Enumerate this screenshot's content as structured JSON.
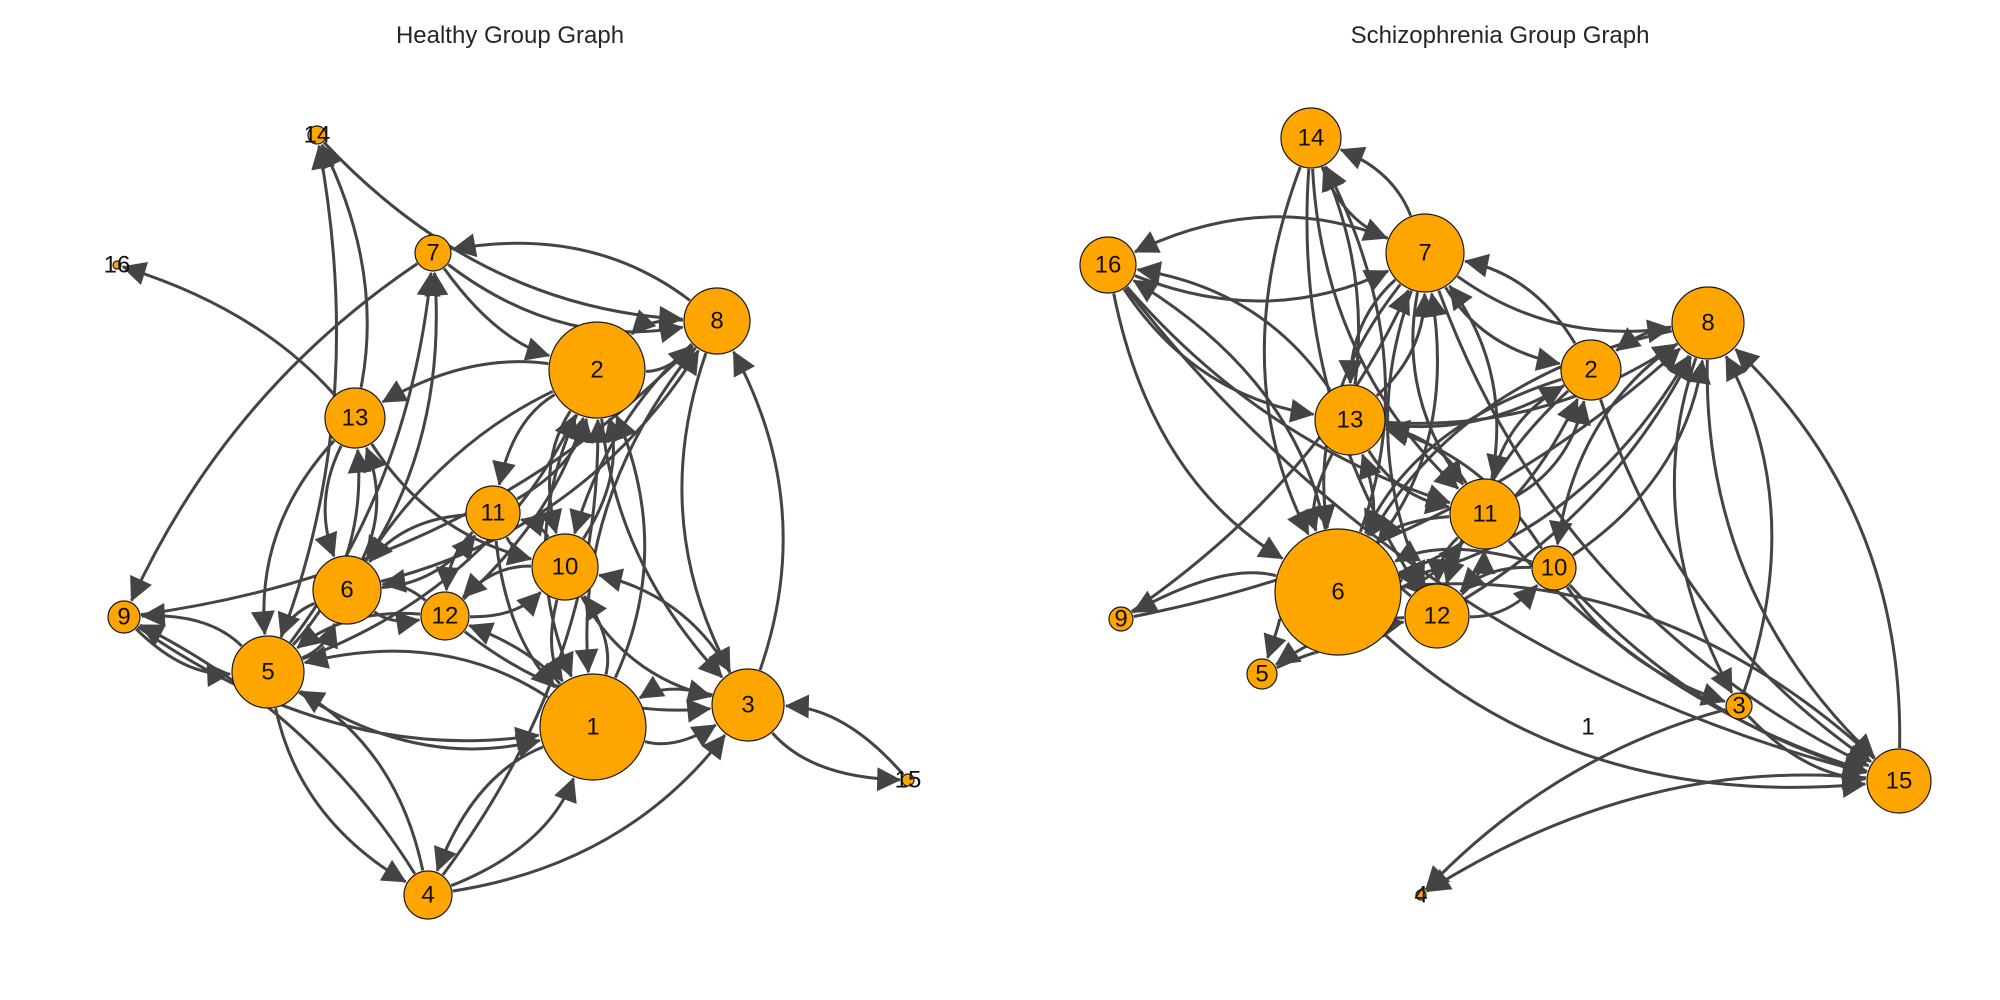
{
  "graphs": {
    "healthy": {
      "title": "Healthy Group Graph",
      "edge_color": "#444444",
      "node_color": "#FFA500",
      "nodes": [
        {
          "id": "1",
          "label": "1"
        },
        {
          "id": "2",
          "label": "2"
        },
        {
          "id": "3",
          "label": "3"
        },
        {
          "id": "4",
          "label": "4"
        },
        {
          "id": "5",
          "label": "5"
        },
        {
          "id": "6",
          "label": "6"
        },
        {
          "id": "7",
          "label": "7"
        },
        {
          "id": "8",
          "label": "8"
        },
        {
          "id": "9",
          "label": "9"
        },
        {
          "id": "10",
          "label": "10"
        },
        {
          "id": "11",
          "label": "11"
        },
        {
          "id": "12",
          "label": "12"
        },
        {
          "id": "13",
          "label": "13"
        },
        {
          "id": "14",
          "label": "14"
        },
        {
          "id": "15",
          "label": "15"
        },
        {
          "id": "16",
          "label": "16"
        }
      ],
      "edges": [
        [
          "13",
          "16"
        ],
        [
          "13",
          "14"
        ],
        [
          "14",
          "8"
        ],
        [
          "5",
          "14"
        ],
        [
          "3",
          "15"
        ],
        [
          "15",
          "3"
        ],
        [
          "5",
          "7"
        ],
        [
          "7",
          "2"
        ],
        [
          "8",
          "7"
        ],
        [
          "7",
          "9"
        ],
        [
          "9",
          "5"
        ],
        [
          "5",
          "9"
        ],
        [
          "4",
          "9"
        ],
        [
          "4",
          "5"
        ],
        [
          "5",
          "4"
        ],
        [
          "4",
          "1"
        ],
        [
          "1",
          "4"
        ],
        [
          "4",
          "3"
        ],
        [
          "1",
          "3"
        ],
        [
          "3",
          "1"
        ],
        [
          "3",
          "8"
        ],
        [
          "8",
          "3"
        ],
        [
          "2",
          "3"
        ],
        [
          "2",
          "8"
        ],
        [
          "8",
          "2"
        ],
        [
          "1",
          "2"
        ],
        [
          "2",
          "1"
        ],
        [
          "5",
          "13"
        ],
        [
          "13",
          "5"
        ],
        [
          "6",
          "5"
        ],
        [
          "5",
          "6"
        ],
        [
          "13",
          "6"
        ],
        [
          "6",
          "13"
        ],
        [
          "11",
          "6"
        ],
        [
          "6",
          "11"
        ],
        [
          "12",
          "6"
        ],
        [
          "6",
          "12"
        ],
        [
          "10",
          "11"
        ],
        [
          "11",
          "10"
        ],
        [
          "10",
          "12"
        ],
        [
          "12",
          "10"
        ],
        [
          "11",
          "12"
        ],
        [
          "1",
          "12"
        ],
        [
          "10",
          "1"
        ],
        [
          "1",
          "10"
        ],
        [
          "2",
          "10"
        ],
        [
          "10",
          "2"
        ],
        [
          "11",
          "2"
        ],
        [
          "2",
          "11"
        ],
        [
          "2",
          "13"
        ],
        [
          "13",
          "10"
        ],
        [
          "10",
          "3"
        ],
        [
          "3",
          "10"
        ],
        [
          "12",
          "3"
        ],
        [
          "8",
          "10"
        ],
        [
          "5",
          "1"
        ],
        [
          "9",
          "1"
        ],
        [
          "1",
          "5"
        ],
        [
          "6",
          "7"
        ],
        [
          "12",
          "5"
        ],
        [
          "2",
          "6"
        ],
        [
          "11",
          "1"
        ],
        [
          "8",
          "1"
        ],
        [
          "7",
          "8"
        ],
        [
          "9",
          "8"
        ],
        [
          "5",
          "2"
        ],
        [
          "12",
          "2"
        ],
        [
          "4",
          "2"
        ],
        [
          "6",
          "8"
        ]
      ]
    },
    "schizophrenia": {
      "title": "Schizophrenia Group Graph",
      "edge_color": "#444444",
      "node_color": "#FFA500",
      "nodes": [
        {
          "id": "1",
          "label": "1"
        },
        {
          "id": "2",
          "label": "2"
        },
        {
          "id": "3",
          "label": "3"
        },
        {
          "id": "4",
          "label": "4"
        },
        {
          "id": "5",
          "label": "5"
        },
        {
          "id": "6",
          "label": "6"
        },
        {
          "id": "7",
          "label": "7"
        },
        {
          "id": "8",
          "label": "8"
        },
        {
          "id": "9",
          "label": "9"
        },
        {
          "id": "10",
          "label": "10"
        },
        {
          "id": "11",
          "label": "11"
        },
        {
          "id": "12",
          "label": "12"
        },
        {
          "id": "13",
          "label": "13"
        },
        {
          "id": "14",
          "label": "14"
        },
        {
          "id": "15",
          "label": "15"
        },
        {
          "id": "16",
          "label": "16"
        }
      ],
      "edges": [
        [
          "3",
          "4"
        ],
        [
          "15",
          "4"
        ],
        [
          "16",
          "7"
        ],
        [
          "7",
          "16"
        ],
        [
          "14",
          "7"
        ],
        [
          "7",
          "14"
        ],
        [
          "13",
          "14"
        ],
        [
          "14",
          "6"
        ],
        [
          "6",
          "14"
        ],
        [
          "7",
          "6"
        ],
        [
          "6",
          "7"
        ],
        [
          "7",
          "8"
        ],
        [
          "8",
          "2"
        ],
        [
          "2",
          "7"
        ],
        [
          "7",
          "2"
        ],
        [
          "13",
          "7"
        ],
        [
          "7",
          "13"
        ],
        [
          "16",
          "6"
        ],
        [
          "6",
          "16"
        ],
        [
          "16",
          "13"
        ],
        [
          "13",
          "16"
        ],
        [
          "16",
          "11"
        ],
        [
          "16",
          "15"
        ],
        [
          "6",
          "9"
        ],
        [
          "9",
          "7"
        ],
        [
          "6",
          "5"
        ],
        [
          "5",
          "6"
        ],
        [
          "12",
          "5"
        ],
        [
          "6",
          "12"
        ],
        [
          "12",
          "6"
        ],
        [
          "12",
          "10"
        ],
        [
          "10",
          "12"
        ],
        [
          "11",
          "12"
        ],
        [
          "12",
          "11"
        ],
        [
          "11",
          "6"
        ],
        [
          "6",
          "11"
        ],
        [
          "13",
          "6"
        ],
        [
          "6",
          "13"
        ],
        [
          "11",
          "13"
        ],
        [
          "13",
          "11"
        ],
        [
          "2",
          "11"
        ],
        [
          "11",
          "2"
        ],
        [
          "2",
          "6"
        ],
        [
          "6",
          "2"
        ],
        [
          "8",
          "6"
        ],
        [
          "6",
          "8"
        ],
        [
          "8",
          "10"
        ],
        [
          "10",
          "8"
        ],
        [
          "8",
          "3"
        ],
        [
          "3",
          "8"
        ],
        [
          "8",
          "15"
        ],
        [
          "15",
          "8"
        ],
        [
          "2",
          "15"
        ],
        [
          "7",
          "15"
        ],
        [
          "10",
          "15"
        ],
        [
          "6",
          "15"
        ],
        [
          "15",
          "6"
        ],
        [
          "11",
          "15"
        ],
        [
          "10",
          "3"
        ],
        [
          "3",
          "15"
        ],
        [
          "12",
          "8"
        ],
        [
          "13",
          "8"
        ],
        [
          "14",
          "11"
        ],
        [
          "7",
          "11"
        ],
        [
          "11",
          "7"
        ],
        [
          "10",
          "6"
        ],
        [
          "9",
          "8"
        ],
        [
          "14",
          "12"
        ],
        [
          "7",
          "12"
        ],
        [
          "2",
          "12"
        ],
        [
          "13",
          "2"
        ],
        [
          "10",
          "13"
        ]
      ]
    }
  }
}
